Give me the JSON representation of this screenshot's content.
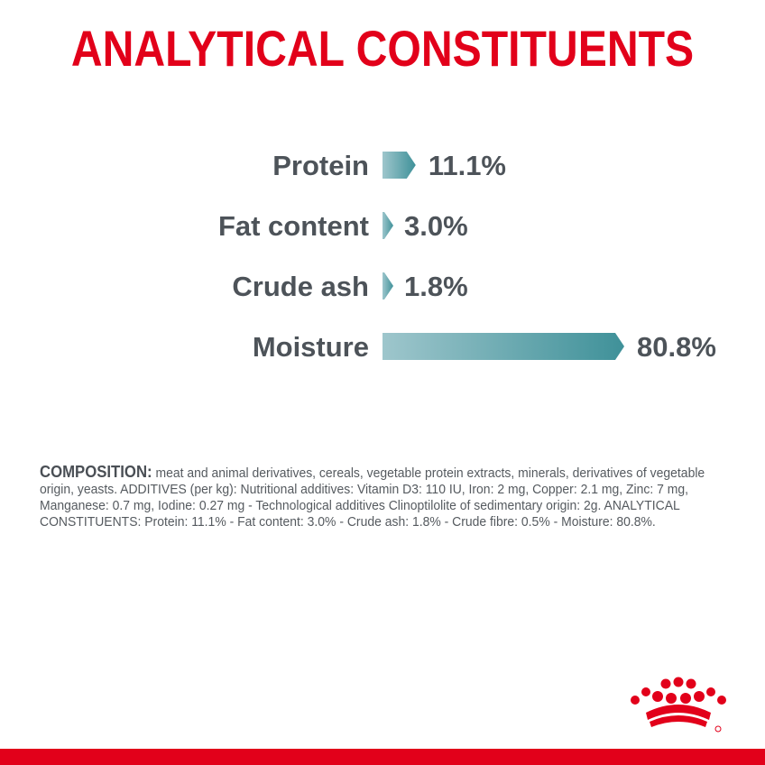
{
  "title": "ANALYTICAL CONSTITUENTS",
  "chart_data": {
    "type": "bar",
    "orientation": "horizontal",
    "categories": [
      "Protein",
      "Fat content",
      "Crude ash",
      "Moisture"
    ],
    "values": [
      11.1,
      3.0,
      1.8,
      80.8
    ],
    "value_labels": [
      "11.1%",
      "3.0%",
      "1.8%",
      "80.8%"
    ],
    "unit": "%",
    "title": "ANALYTICAL CONSTITUENTS",
    "xlabel": "",
    "ylabel": "",
    "xlim": [
      0,
      80.8
    ],
    "grid": false,
    "colors": {
      "bar_start": "#9ec6cc",
      "bar_end": "#3f9199",
      "label": "#4d5359"
    }
  },
  "composition": {
    "lead": "COMPOSITION:",
    "text": " meat and animal derivatives, cereals, vegetable protein extracts, minerals, derivatives of vegetable origin, yeasts. ADDITIVES (per kg): Nutritional additives: Vitamin D3: 110 IU, Iron: 2 mg, Copper: 2.1 mg, Zinc: 7 mg, Manganese: 0.7 mg, Iodine: 0.27 mg - Technological additives Clinoptilolite of sedimentary origin: 2g. ANALYTICAL CONSTITUENTS: Protein: 11.1% - Fat content: 3.0% - Crude ash: 1.8% - Crude fibre: 0.5% - Moisture: 80.8%."
  },
  "brand": {
    "logo_icon": "crown-icon",
    "color": "#e2001a"
  }
}
